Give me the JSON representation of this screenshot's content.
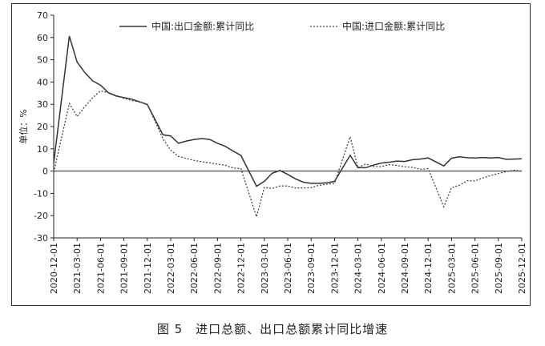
{
  "caption": "图 5　进口总额、出口总额累计同比增速",
  "chart_data": {
    "type": "line",
    "title": "",
    "xlabel": "",
    "ylabel": "单位：%",
    "ylim": [
      -30,
      70
    ],
    "yticks": [
      -30,
      -20,
      -10,
      0,
      10,
      20,
      30,
      40,
      50,
      60,
      70
    ],
    "grid": false,
    "legend_position": "top",
    "x_tick_labels": [
      "2020-12-01",
      "2021-03-01",
      "2021-06-01",
      "2021-09-01",
      "2021-12-01",
      "2022-03-01",
      "2022-06-01",
      "2022-09-01",
      "2022-12-01",
      "2023-03-01",
      "2023-06-01",
      "2023-09-01",
      "2023-12-01",
      "2024-03-01",
      "2024-06-01",
      "2024-09-01",
      "2024-12-01",
      "2025-03-01",
      "2025-06-01",
      "2025-09-01",
      "2025-12-01"
    ],
    "series": [
      {
        "name": "中国:出口金额:累计同比",
        "style": "solid",
        "color": "#333333",
        "points": [
          [
            "2020-12",
            3.6
          ],
          [
            "2021-02",
            60.6
          ],
          [
            "2021-03",
            49.0
          ],
          [
            "2021-04",
            44.2
          ],
          [
            "2021-05",
            40.5
          ],
          [
            "2021-06",
            38.6
          ],
          [
            "2021-07",
            35.2
          ],
          [
            "2021-08",
            33.7
          ],
          [
            "2021-09",
            33.0
          ],
          [
            "2021-10",
            32.3
          ],
          [
            "2021-11",
            31.1
          ],
          [
            "2021-12",
            29.9
          ],
          [
            "2022-02",
            16.3
          ],
          [
            "2022-03",
            15.8
          ],
          [
            "2022-04",
            12.5
          ],
          [
            "2022-05",
            13.5
          ],
          [
            "2022-06",
            14.2
          ],
          [
            "2022-07",
            14.6
          ],
          [
            "2022-08",
            14.2
          ],
          [
            "2022-09",
            12.5
          ],
          [
            "2022-10",
            11.1
          ],
          [
            "2022-11",
            9.0
          ],
          [
            "2022-12",
            7.0
          ],
          [
            "2023-02",
            -6.8
          ],
          [
            "2023-03",
            -4.6
          ],
          [
            "2023-04",
            -1.0
          ],
          [
            "2023-05",
            0.3
          ],
          [
            "2023-06",
            -1.5
          ],
          [
            "2023-07",
            -3.5
          ],
          [
            "2023-08",
            -5.0
          ],
          [
            "2023-09",
            -5.5
          ],
          [
            "2023-10",
            -5.5
          ],
          [
            "2023-11",
            -5.3
          ],
          [
            "2023-12",
            -4.6
          ],
          [
            "2024-02",
            7.1
          ],
          [
            "2024-03",
            1.5
          ],
          [
            "2024-04",
            1.5
          ],
          [
            "2024-05",
            2.7
          ],
          [
            "2024-06",
            3.6
          ],
          [
            "2024-07",
            4.0
          ],
          [
            "2024-08",
            4.5
          ],
          [
            "2024-09",
            4.3
          ],
          [
            "2024-10",
            5.1
          ],
          [
            "2024-11",
            5.4
          ],
          [
            "2024-12",
            5.9
          ],
          [
            "2025-02",
            2.3
          ],
          [
            "2025-03",
            5.8
          ],
          [
            "2025-04",
            6.4
          ],
          [
            "2025-05",
            6.0
          ],
          [
            "2025-06",
            5.9
          ],
          [
            "2025-07",
            6.1
          ],
          [
            "2025-08",
            5.9
          ],
          [
            "2025-09",
            6.1
          ],
          [
            "2025-10",
            5.3
          ],
          [
            "2025-11",
            5.4
          ],
          [
            "2025-12",
            5.5
          ]
        ]
      },
      {
        "name": "中国:进口金额:累计同比",
        "style": "dotted",
        "color": "#444444",
        "points": [
          [
            "2020-12",
            -0.6
          ],
          [
            "2021-02",
            30.4
          ],
          [
            "2021-03",
            24.5
          ],
          [
            "2021-04",
            29.0
          ],
          [
            "2021-05",
            33.0
          ],
          [
            "2021-06",
            36.0
          ],
          [
            "2021-07",
            35.3
          ],
          [
            "2021-08",
            34.0
          ],
          [
            "2021-09",
            32.7
          ],
          [
            "2021-10",
            31.7
          ],
          [
            "2021-11",
            31.0
          ],
          [
            "2021-12",
            30.0
          ],
          [
            "2022-02",
            14.5
          ],
          [
            "2022-03",
            9.3
          ],
          [
            "2022-04",
            6.6
          ],
          [
            "2022-05",
            5.7
          ],
          [
            "2022-06",
            4.8
          ],
          [
            "2022-07",
            4.2
          ],
          [
            "2022-08",
            3.7
          ],
          [
            "2022-09",
            3.1
          ],
          [
            "2022-10",
            2.6
          ],
          [
            "2022-11",
            1.4
          ],
          [
            "2022-12",
            1.1
          ],
          [
            "2023-02",
            -20.5
          ],
          [
            "2023-03",
            -7.3
          ],
          [
            "2023-04",
            -7.8
          ],
          [
            "2023-05",
            -6.7
          ],
          [
            "2023-06",
            -6.7
          ],
          [
            "2023-07",
            -7.6
          ],
          [
            "2023-08",
            -7.6
          ],
          [
            "2023-09",
            -7.5
          ],
          [
            "2023-10",
            -6.4
          ],
          [
            "2023-11",
            -5.9
          ],
          [
            "2023-12",
            -5.5
          ],
          [
            "2024-02",
            15.4
          ],
          [
            "2024-03",
            1.5
          ],
          [
            "2024-04",
            3.2
          ],
          [
            "2024-05",
            2.0
          ],
          [
            "2024-06",
            2.0
          ],
          [
            "2024-07",
            2.9
          ],
          [
            "2024-08",
            2.5
          ],
          [
            "2024-09",
            1.9
          ],
          [
            "2024-10",
            1.7
          ],
          [
            "2024-11",
            0.8
          ],
          [
            "2024-12",
            1.1
          ],
          [
            "2025-02",
            -16.0
          ],
          [
            "2025-03",
            -7.5
          ],
          [
            "2025-04",
            -6.4
          ],
          [
            "2025-05",
            -4.3
          ],
          [
            "2025-06",
            -4.4
          ],
          [
            "2025-07",
            -3.1
          ],
          [
            "2025-08",
            -2.0
          ],
          [
            "2025-09",
            -1.1
          ],
          [
            "2025-10",
            -0.2
          ],
          [
            "2025-11",
            0.4
          ],
          [
            "2025-12",
            0.0
          ]
        ]
      }
    ]
  }
}
